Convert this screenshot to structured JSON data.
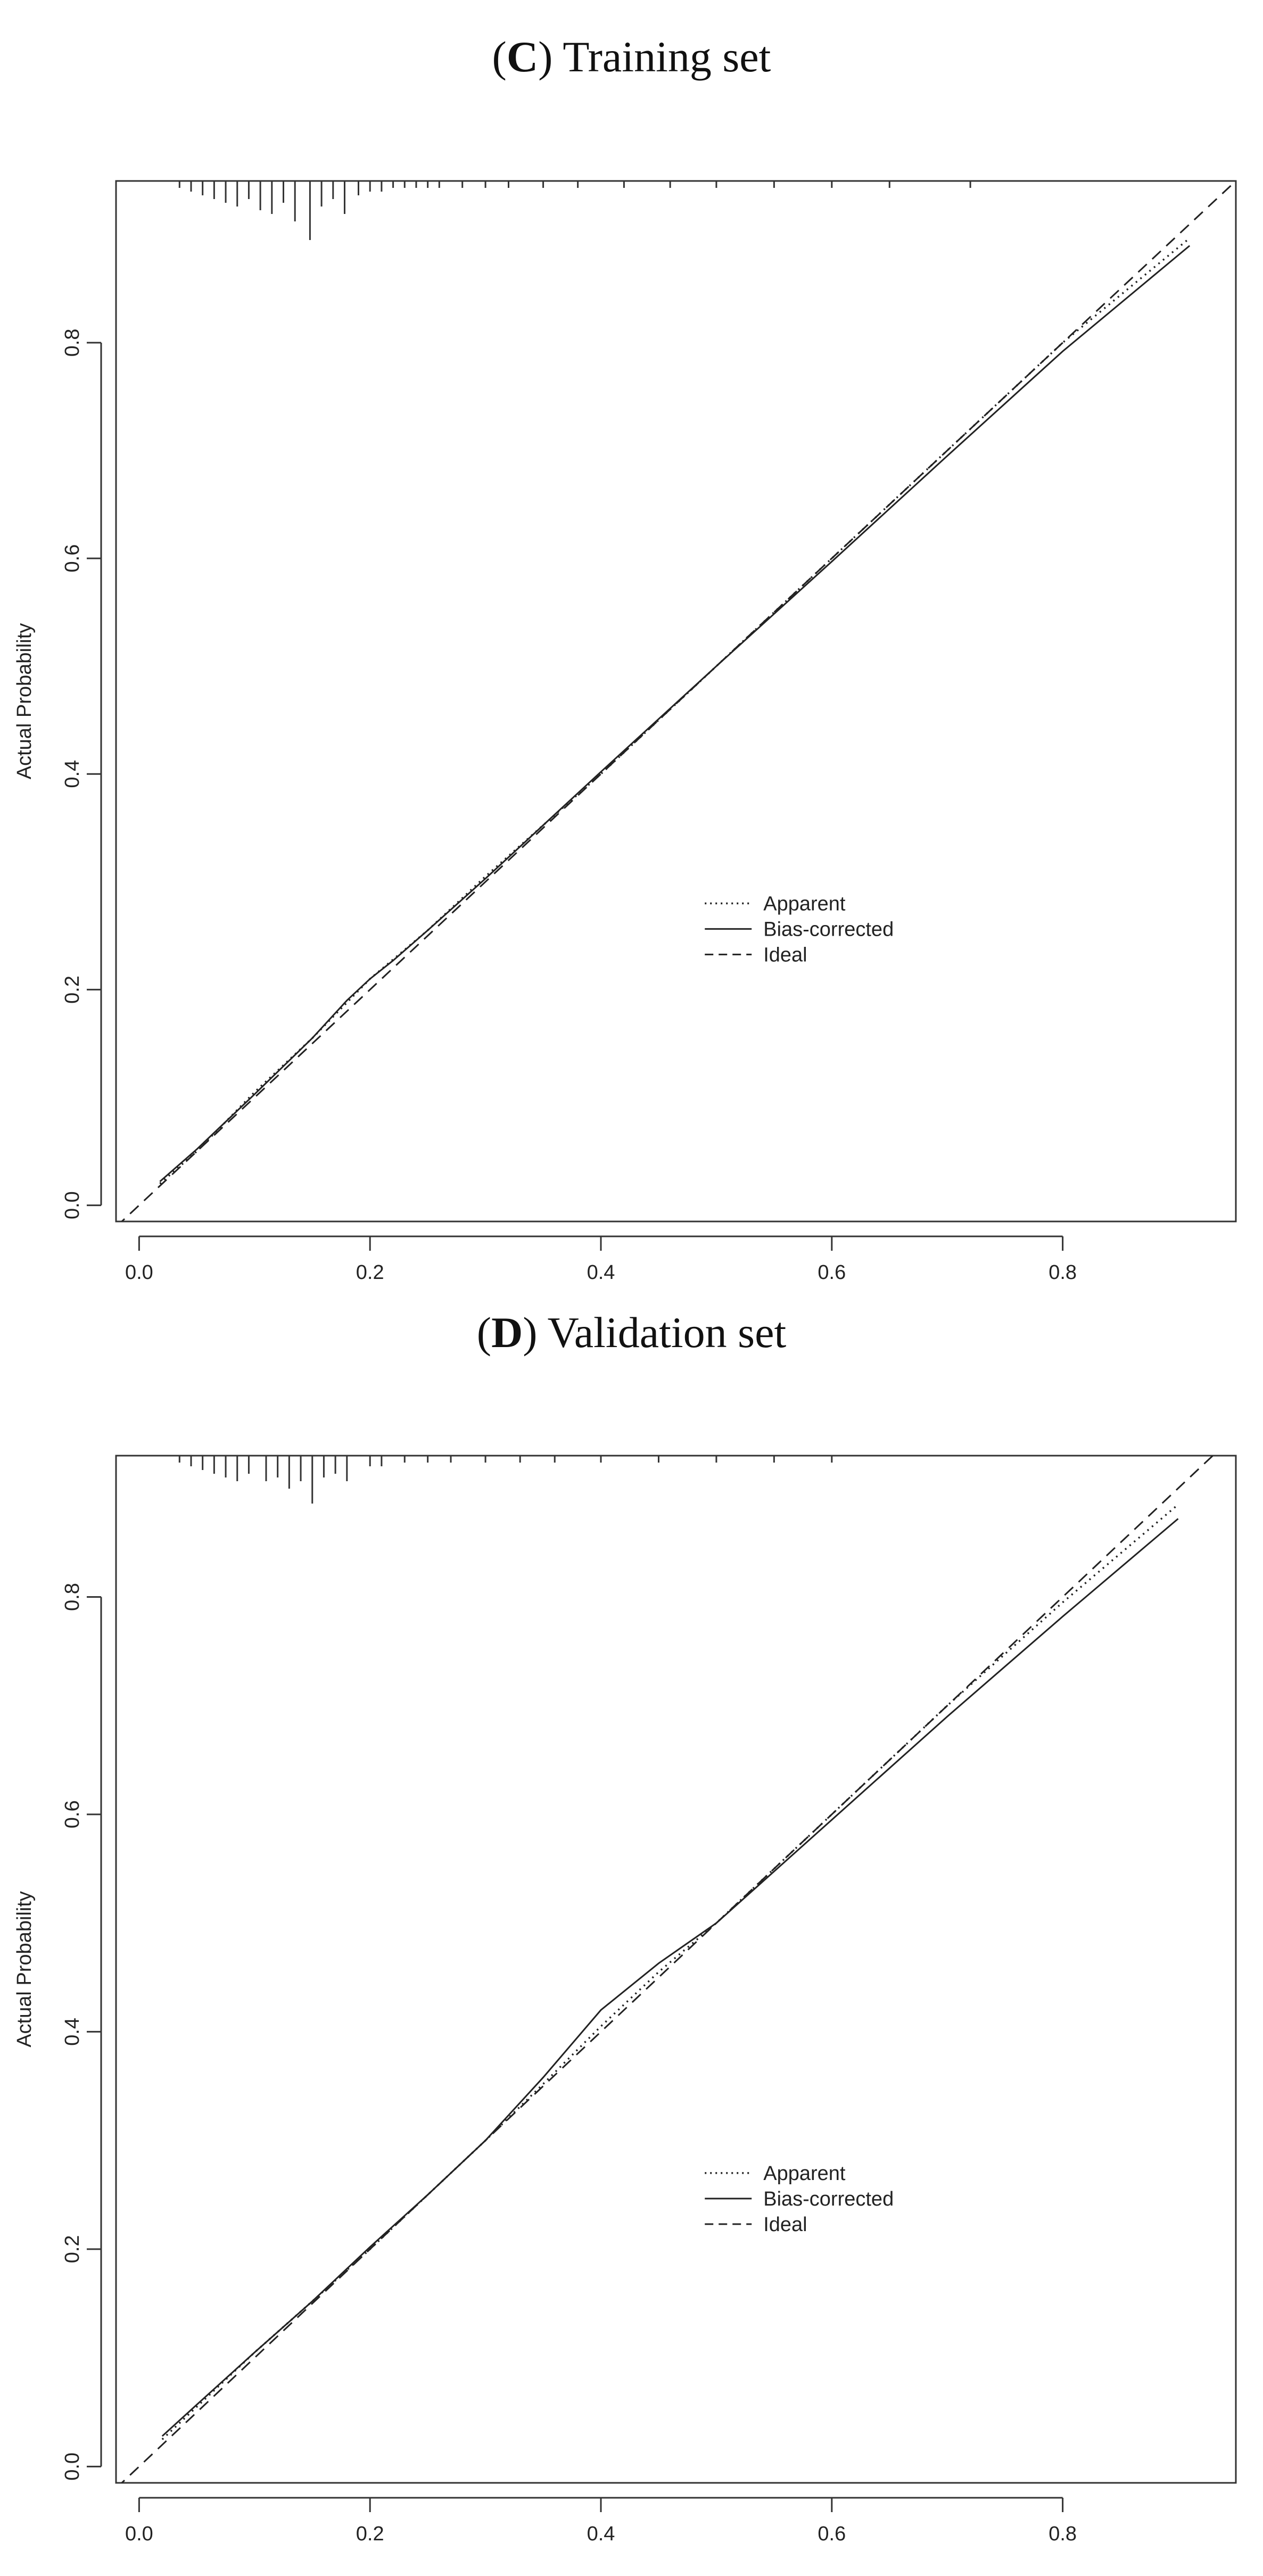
{
  "panels": [
    {
      "title_letter": "C",
      "title_text": " Training set",
      "chart_data": {
        "type": "line",
        "title": "(C) Training set",
        "xlabel": "",
        "ylabel": "Actual Probability",
        "xlim": [
          -0.02,
          0.95
        ],
        "ylim": [
          -0.015,
          0.95
        ],
        "xticks": [
          0.0,
          0.2,
          0.4,
          0.6,
          0.8
        ],
        "xtick_labels": [
          "0.0",
          "0.2",
          "0.4",
          "0.6",
          "0.8"
        ],
        "yticks": [
          0.0,
          0.2,
          0.4,
          0.6,
          0.8
        ],
        "ytick_labels": [
          "0.0",
          "0.2",
          "0.4",
          "0.6",
          "0.8"
        ],
        "legend_position": "center-right",
        "series": [
          {
            "name": "Apparent",
            "style": "dotted",
            "x": [
              0.018,
              0.05,
              0.1,
              0.15,
              0.2,
              0.25,
              0.3,
              0.4,
              0.5,
              0.6,
              0.7,
              0.8,
              0.91
            ],
            "y": [
              0.02,
              0.05,
              0.105,
              0.155,
              0.21,
              0.255,
              0.305,
              0.4,
              0.5,
              0.6,
              0.7,
              0.8,
              0.897
            ]
          },
          {
            "name": "Bias-corrected",
            "style": "solid",
            "x": [
              0.018,
              0.05,
              0.1,
              0.15,
              0.18,
              0.2,
              0.22,
              0.25,
              0.3,
              0.4,
              0.5,
              0.6,
              0.7,
              0.8,
              0.91
            ],
            "y": [
              0.022,
              0.052,
              0.103,
              0.155,
              0.19,
              0.21,
              0.227,
              0.255,
              0.303,
              0.402,
              0.5,
              0.597,
              0.695,
              0.792,
              0.89
            ]
          },
          {
            "name": "Ideal",
            "style": "dashed",
            "x": [
              -0.02,
              0.95
            ],
            "y": [
              -0.02,
              0.95
            ]
          }
        ],
        "rug": {
          "x": [
            0.035,
            0.045,
            0.055,
            0.065,
            0.075,
            0.085,
            0.095,
            0.105,
            0.115,
            0.125,
            0.135,
            0.148,
            0.158,
            0.168,
            0.178,
            0.19,
            0.2,
            0.21,
            0.22,
            0.23,
            0.24,
            0.25,
            0.26,
            0.28,
            0.3,
            0.32,
            0.35,
            0.38,
            0.42,
            0.46,
            0.5,
            0.55,
            0.6,
            0.65,
            0.72
          ],
          "count": [
            1,
            2,
            3,
            4,
            5,
            6,
            4,
            7,
            8,
            5,
            10,
            15,
            6,
            4,
            8,
            3,
            2,
            2,
            1,
            1,
            1,
            1,
            1,
            1,
            1,
            1,
            1,
            1,
            1,
            1,
            1,
            1,
            1,
            1,
            1
          ]
        }
      }
    },
    {
      "title_letter": "D",
      "title_text": " Validation set",
      "chart_data": {
        "type": "line",
        "title": "(D) Validation set",
        "xlabel": "",
        "ylabel": "Actual Probability",
        "xlim": [
          -0.02,
          0.95
        ],
        "ylim": [
          -0.015,
          0.93
        ],
        "xticks": [
          0.0,
          0.2,
          0.4,
          0.6,
          0.8
        ],
        "xtick_labels": [
          "0.0",
          "0.2",
          "0.4",
          "0.6",
          "0.8"
        ],
        "yticks": [
          0.0,
          0.2,
          0.4,
          0.6,
          0.8
        ],
        "ytick_labels": [
          "0.0",
          "0.2",
          "0.4",
          "0.6",
          "0.8"
        ],
        "legend_position": "center-right",
        "series": [
          {
            "name": "Apparent",
            "style": "dotted",
            "x": [
              0.02,
              0.05,
              0.1,
              0.15,
              0.2,
              0.25,
              0.3,
              0.35,
              0.4,
              0.45,
              0.5,
              0.6,
              0.7,
              0.8,
              0.9
            ],
            "y": [
              0.025,
              0.055,
              0.105,
              0.152,
              0.2,
              0.25,
              0.3,
              0.352,
              0.405,
              0.455,
              0.5,
              0.6,
              0.7,
              0.795,
              0.885
            ]
          },
          {
            "name": "Bias-corrected",
            "style": "solid",
            "x": [
              0.02,
              0.05,
              0.1,
              0.15,
              0.2,
              0.25,
              0.3,
              0.35,
              0.4,
              0.45,
              0.5,
              0.6,
              0.7,
              0.8,
              0.9
            ],
            "y": [
              0.028,
              0.057,
              0.105,
              0.152,
              0.202,
              0.25,
              0.3,
              0.358,
              0.42,
              0.463,
              0.5,
              0.595,
              0.69,
              0.782,
              0.872
            ]
          },
          {
            "name": "Ideal",
            "style": "dashed",
            "x": [
              -0.02,
              0.95
            ],
            "y": [
              -0.02,
              0.95
            ]
          }
        ],
        "rug": {
          "x": [
            0.035,
            0.045,
            0.055,
            0.065,
            0.075,
            0.085,
            0.095,
            0.11,
            0.12,
            0.13,
            0.14,
            0.15,
            0.16,
            0.17,
            0.18,
            0.2,
            0.21,
            0.23,
            0.25,
            0.27,
            0.3,
            0.33,
            0.36,
            0.4,
            0.45,
            0.5,
            0.55,
            0.6
          ],
          "count": [
            1,
            2,
            3,
            4,
            5,
            6,
            4,
            6,
            5,
            8,
            6,
            12,
            5,
            4,
            6,
            2,
            2,
            1,
            1,
            1,
            1,
            1,
            1,
            1,
            1,
            1,
            1,
            1
          ]
        }
      }
    }
  ]
}
